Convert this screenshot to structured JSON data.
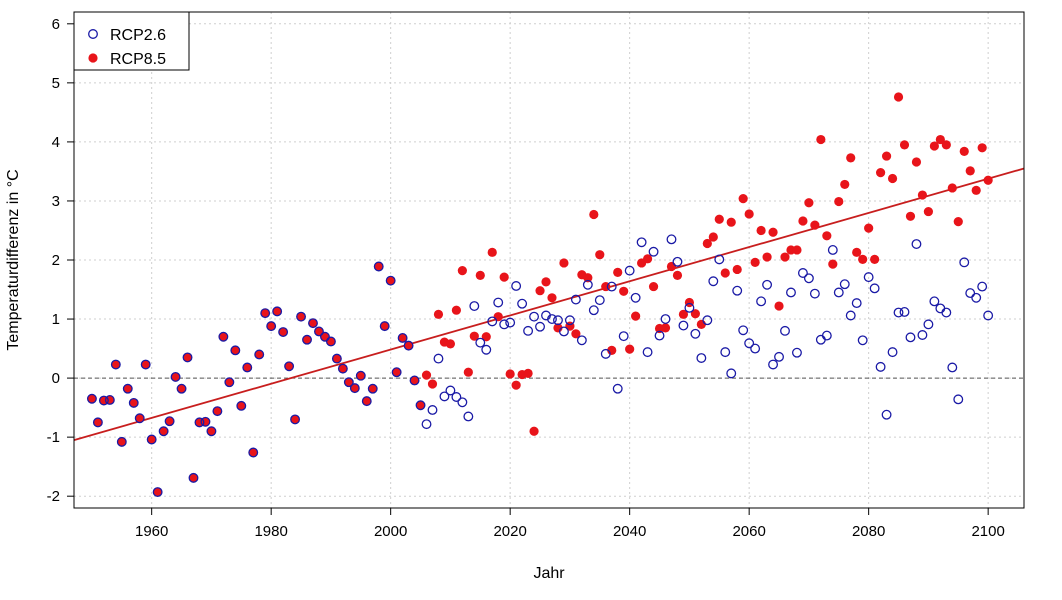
{
  "chart_data": {
    "type": "scatter",
    "xlabel": "Jahr",
    "ylabel": "Temperaturdifferenz in °C",
    "xlim": [
      1947,
      2106
    ],
    "ylim": [
      -2.2,
      6.2
    ],
    "xticks": [
      1960,
      1980,
      2000,
      2020,
      2040,
      2060,
      2080,
      2100
    ],
    "yticks": [
      -2,
      -1,
      0,
      1,
      2,
      3,
      4,
      5,
      6
    ],
    "grid": true,
    "legend_position": "top-left",
    "colors": {
      "rcp26_stroke": "#1a1aa6",
      "rcp85_fill": "#e8141a",
      "trend": "#c81e1e",
      "grid": "#cfcfcf",
      "zero_line": "#555555"
    },
    "hline": {
      "y": 0,
      "style": "dashed"
    },
    "trend": {
      "x": [
        1947,
        2106
      ],
      "y": [
        -1.05,
        3.55
      ]
    },
    "series": [
      {
        "name": "RCP2.6",
        "marker": "open-circle",
        "x": [
          1950,
          1951,
          1952,
          1953,
          1954,
          1955,
          1956,
          1957,
          1958,
          1959,
          1960,
          1961,
          1962,
          1963,
          1964,
          1965,
          1966,
          1967,
          1968,
          1969,
          1970,
          1971,
          1972,
          1973,
          1974,
          1975,
          1976,
          1977,
          1978,
          1979,
          1980,
          1981,
          1982,
          1983,
          1984,
          1985,
          1986,
          1987,
          1988,
          1989,
          1990,
          1991,
          1992,
          1993,
          1994,
          1995,
          1996,
          1997,
          1998,
          1999,
          2000,
          2001,
          2002,
          2003,
          2004,
          2005,
          2006,
          2007,
          2008,
          2009,
          2010,
          2011,
          2012,
          2013,
          2014,
          2015,
          2016,
          2017,
          2018,
          2019,
          2020,
          2021,
          2022,
          2023,
          2024,
          2025,
          2026,
          2027,
          2028,
          2029,
          2030,
          2031,
          2032,
          2033,
          2034,
          2035,
          2036,
          2037,
          2038,
          2039,
          2040,
          2041,
          2042,
          2043,
          2044,
          2045,
          2046,
          2047,
          2048,
          2049,
          2050,
          2051,
          2052,
          2053,
          2054,
          2055,
          2056,
          2057,
          2058,
          2059,
          2060,
          2061,
          2062,
          2063,
          2064,
          2065,
          2066,
          2067,
          2068,
          2069,
          2070,
          2071,
          2072,
          2073,
          2074,
          2075,
          2076,
          2077,
          2078,
          2079,
          2080,
          2081,
          2082,
          2083,
          2084,
          2085,
          2086,
          2087,
          2088,
          2089,
          2090,
          2091,
          2092,
          2093,
          2094,
          2095,
          2096,
          2097,
          2098,
          2099,
          2100
        ],
        "y": [
          -0.35,
          -0.75,
          -0.38,
          -0.37,
          0.23,
          -1.08,
          -0.18,
          -0.42,
          -0.68,
          0.23,
          -1.04,
          -1.93,
          -0.9,
          -0.73,
          0.02,
          -0.18,
          0.35,
          -1.69,
          -0.75,
          -0.74,
          -0.9,
          -0.56,
          0.7,
          -0.07,
          0.47,
          -0.47,
          0.18,
          -1.26,
          0.4,
          1.1,
          0.88,
          1.13,
          0.78,
          0.2,
          -0.7,
          1.04,
          0.65,
          0.93,
          0.79,
          0.7,
          0.62,
          0.33,
          0.16,
          -0.07,
          -0.17,
          0.04,
          -0.39,
          -0.18,
          1.89,
          0.88,
          1.65,
          0.1,
          0.68,
          0.55,
          -0.04,
          -0.46,
          -0.78,
          -0.54,
          0.33,
          -0.31,
          -0.21,
          -0.32,
          -0.41,
          -0.65,
          1.22,
          0.6,
          0.48,
          0.96,
          1.28,
          0.91,
          0.94,
          1.56,
          1.26,
          0.8,
          1.04,
          0.87,
          1.06,
          1.0,
          0.98,
          0.79,
          0.98,
          1.33,
          0.64,
          1.58,
          1.15,
          1.32,
          0.41,
          1.55,
          -0.18,
          0.71,
          1.82,
          1.36,
          2.3,
          0.44,
          2.14,
          0.72,
          1.0,
          2.35,
          1.97,
          0.89,
          1.19,
          0.75,
          0.34,
          0.98,
          1.64,
          2.01,
          0.44,
          0.08,
          1.48,
          0.81,
          0.59,
          0.5,
          1.3,
          1.58,
          0.23,
          0.36,
          0.8,
          1.45,
          0.43,
          1.78,
          1.69,
          1.43,
          0.65,
          0.72,
          2.17,
          1.45,
          1.59,
          1.06,
          1.27,
          0.64,
          1.71,
          1.52,
          0.19,
          -0.62,
          0.44,
          1.11,
          1.12,
          0.69,
          2.27,
          0.73,
          0.91,
          1.3,
          1.18,
          1.11,
          0.18,
          -0.36,
          1.96,
          1.44,
          1.36,
          1.55,
          1.06
        ]
      },
      {
        "name": "RCP8.5",
        "marker": "filled-circle",
        "x": [
          1950,
          1951,
          1952,
          1953,
          1954,
          1955,
          1956,
          1957,
          1958,
          1959,
          1960,
          1961,
          1962,
          1963,
          1964,
          1965,
          1966,
          1967,
          1968,
          1969,
          1970,
          1971,
          1972,
          1973,
          1974,
          1975,
          1976,
          1977,
          1978,
          1979,
          1980,
          1981,
          1982,
          1983,
          1984,
          1985,
          1986,
          1987,
          1988,
          1989,
          1990,
          1991,
          1992,
          1993,
          1994,
          1995,
          1996,
          1997,
          1998,
          1999,
          2000,
          2001,
          2002,
          2003,
          2004,
          2005,
          2006,
          2007,
          2008,
          2009,
          2010,
          2011,
          2012,
          2013,
          2014,
          2015,
          2016,
          2017,
          2018,
          2019,
          2020,
          2021,
          2022,
          2023,
          2024,
          2025,
          2026,
          2027,
          2028,
          2029,
          2030,
          2031,
          2032,
          2033,
          2034,
          2035,
          2036,
          2037,
          2038,
          2039,
          2040,
          2041,
          2042,
          2043,
          2044,
          2045,
          2046,
          2047,
          2048,
          2049,
          2050,
          2051,
          2052,
          2053,
          2054,
          2055,
          2056,
          2057,
          2058,
          2059,
          2060,
          2061,
          2062,
          2063,
          2064,
          2065,
          2066,
          2067,
          2068,
          2069,
          2070,
          2071,
          2072,
          2073,
          2074,
          2075,
          2076,
          2077,
          2078,
          2079,
          2080,
          2081,
          2082,
          2083,
          2084,
          2085,
          2086,
          2087,
          2088,
          2089,
          2090,
          2091,
          2092,
          2093,
          2094,
          2095,
          2096,
          2097,
          2098,
          2099,
          2100
        ],
        "y": [
          -0.35,
          -0.75,
          -0.38,
          -0.37,
          0.23,
          -1.08,
          -0.18,
          -0.42,
          -0.68,
          0.23,
          -1.04,
          -1.93,
          -0.9,
          -0.73,
          0.02,
          -0.18,
          0.35,
          -1.69,
          -0.75,
          -0.74,
          -0.9,
          -0.56,
          0.7,
          -0.07,
          0.47,
          -0.47,
          0.18,
          -1.26,
          0.4,
          1.1,
          0.88,
          1.13,
          0.78,
          0.2,
          -0.7,
          1.04,
          0.65,
          0.93,
          0.79,
          0.7,
          0.62,
          0.33,
          0.16,
          -0.07,
          -0.17,
          0.04,
          -0.39,
          -0.18,
          1.89,
          0.88,
          1.65,
          0.1,
          0.68,
          0.55,
          -0.04,
          -0.46,
          0.05,
          -0.1,
          1.08,
          0.61,
          0.58,
          1.15,
          1.82,
          0.1,
          0.71,
          1.74,
          0.7,
          2.13,
          1.04,
          1.71,
          0.07,
          -0.12,
          0.06,
          0.08,
          -0.9,
          1.48,
          1.63,
          1.36,
          0.85,
          1.95,
          0.88,
          0.75,
          1.75,
          1.7,
          2.77,
          2.09,
          1.55,
          0.47,
          1.79,
          1.47,
          0.49,
          1.05,
          1.95,
          2.02,
          1.55,
          0.84,
          0.85,
          1.89,
          1.74,
          1.08,
          1.28,
          1.09,
          0.91,
          2.28,
          2.39,
          2.69,
          1.78,
          2.64,
          1.84,
          3.04,
          2.78,
          1.96,
          2.5,
          2.05,
          2.47,
          1.22,
          2.05,
          2.17,
          2.17,
          2.66,
          2.97,
          2.59,
          4.04,
          2.41,
          1.93,
          2.99,
          3.28,
          3.73,
          2.13,
          2.01,
          2.54,
          2.01,
          3.48,
          3.76,
          3.38,
          4.76,
          3.95,
          2.74,
          3.66,
          3.1,
          2.82,
          3.93,
          4.04,
          3.95,
          3.22,
          2.65,
          3.84,
          3.51,
          3.18,
          3.9,
          3.35
        ]
      }
    ]
  }
}
